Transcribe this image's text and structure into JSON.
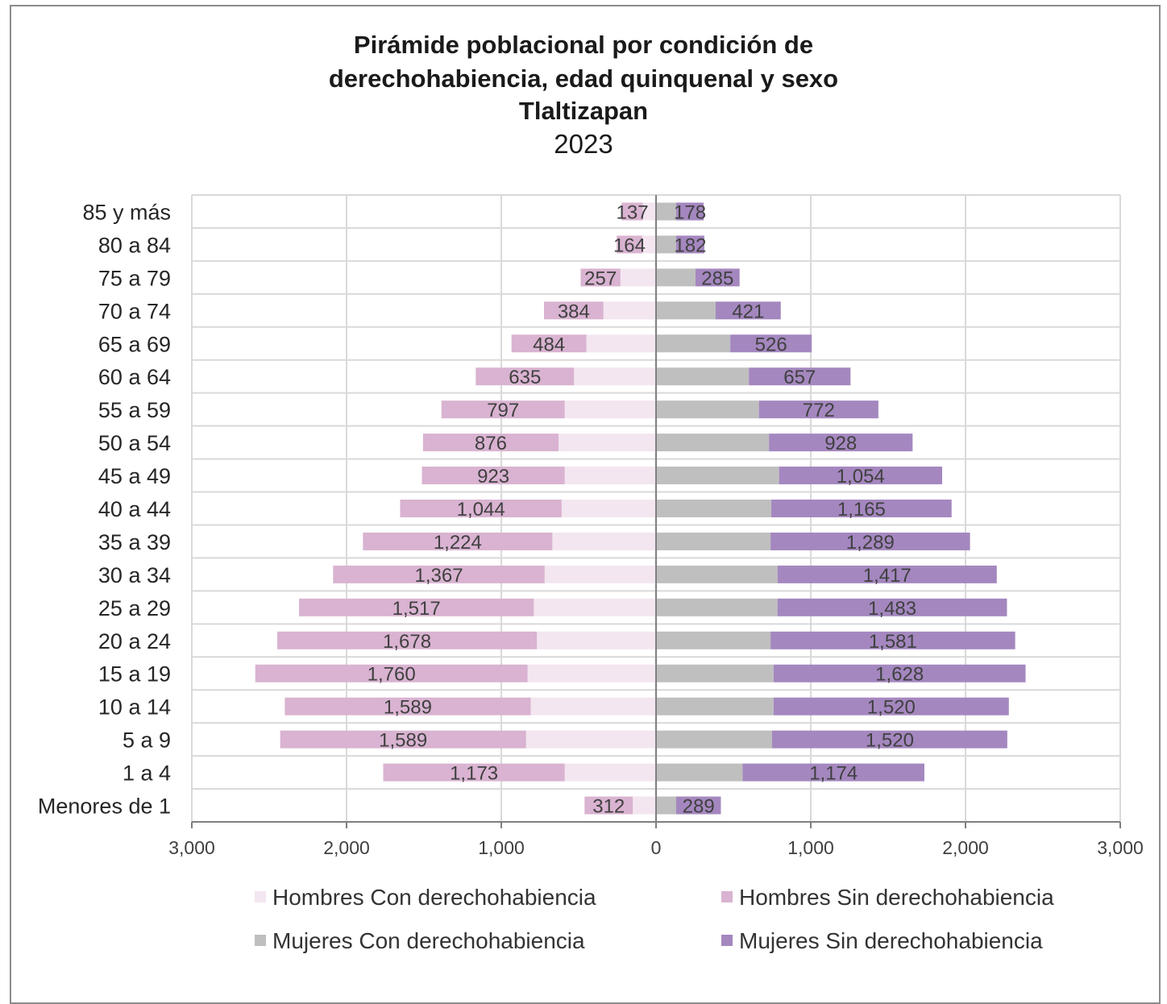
{
  "chart_data": {
    "type": "bar",
    "title": "Pirámide poblacional por condición de derechohabiencia, edad quinquenal y sexo Tlaltizapan 2023",
    "title_lines": [
      "Pirámide poblacional por condición de",
      "derechohabiencia, edad quinquenal y sexo",
      "Tlaltizapan",
      "2023"
    ],
    "orientation": "horizontal",
    "categories": [
      "85 y más",
      "80 a 84",
      "75 a 79",
      "70 a 74",
      "65 a 69",
      "60 a 64",
      "55 a 59",
      "50 a 54",
      "45 a 49",
      "40 a 44",
      "35 a 39",
      "30 a 34",
      "25 a 29",
      "20 a 24",
      "15 a 19",
      "10 a 14",
      "5 a 9",
      "1 a 4",
      "Menores de 1"
    ],
    "xlim": [
      -3000,
      3000
    ],
    "xticks": [
      -3000,
      -2000,
      -1000,
      0,
      1000,
      2000,
      3000
    ],
    "xtick_labels": [
      "3,000",
      "2,000",
      "1,000",
      "0",
      "1,000",
      "2,000",
      "3,000"
    ],
    "grid": true,
    "legend_position": "bottom",
    "series": [
      {
        "name": "Hombres Con derechohabiencia",
        "side": "left",
        "color": "#f3e6f0",
        "values": [
          85,
          90,
          230,
          340,
          450,
          530,
          590,
          630,
          590,
          610,
          670,
          720,
          790,
          770,
          830,
          810,
          840,
          590,
          150
        ]
      },
      {
        "name": "Hombres Sin derechohabiencia",
        "side": "left",
        "color": "#d9b3d1",
        "values": [
          137,
          164,
          257,
          384,
          484,
          635,
          797,
          876,
          923,
          1044,
          1224,
          1367,
          1517,
          1678,
          1760,
          1589,
          1589,
          1173,
          312
        ]
      },
      {
        "name": "Mujeres Con derechohabiencia",
        "side": "right",
        "color": "#bfbfbf",
        "values": [
          130,
          130,
          255,
          385,
          480,
          600,
          665,
          730,
          795,
          745,
          740,
          785,
          785,
          740,
          760,
          760,
          750,
          560,
          130
        ]
      },
      {
        "name": "Mujeres Sin derechohabiencia",
        "side": "right",
        "color": "#a487bf",
        "values": [
          178,
          182,
          285,
          421,
          526,
          657,
          772,
          928,
          1054,
          1165,
          1289,
          1417,
          1483,
          1581,
          1628,
          1520,
          1520,
          1174,
          289
        ]
      }
    ],
    "data_labels_left": [
      "137",
      "164",
      "257",
      "384",
      "484",
      "635",
      "797",
      "876",
      "923",
      "1,044",
      "1,224",
      "1,367",
      "1,517",
      "1,678",
      "1,760",
      "1,589",
      "1,589",
      "1,173",
      "312"
    ],
    "data_labels_right": [
      "178",
      "182",
      "285",
      "421",
      "526",
      "657",
      "772",
      "928",
      "1,054",
      "1,165",
      "1,289",
      "1,417",
      "1,483",
      "1,581",
      "1,628",
      "1,520",
      "1,520",
      "1,174",
      "289"
    ]
  },
  "legend": [
    {
      "label": "Hombres Con derechohabiencia",
      "color": "#f3e6f0"
    },
    {
      "label": "Hombres Sin derechohabiencia",
      "color": "#d9b3d1"
    },
    {
      "label": "Mujeres Con derechohabiencia",
      "color": "#bfbfbf"
    },
    {
      "label": "Mujeres Sin derechohabiencia",
      "color": "#a487bf"
    }
  ]
}
